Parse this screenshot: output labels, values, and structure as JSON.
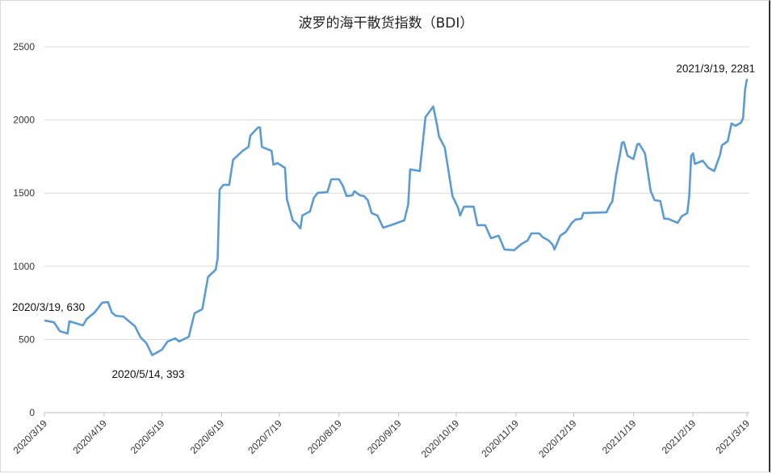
{
  "chart_data": {
    "type": "line",
    "title": "波罗的海干散货指数（BDI）",
    "xlabel": "",
    "ylabel": "",
    "ylim": [
      0,
      2500
    ],
    "yticks": [
      0,
      500,
      1000,
      1500,
      2000,
      2500
    ],
    "xlim": [
      "2020/3/19",
      "2021/3/19"
    ],
    "xticks": [
      "2020/3/19",
      "2020/4/19",
      "2020/5/19",
      "2020/6/19",
      "2020/7/19",
      "2020/8/19",
      "2020/9/19",
      "2020/10/19",
      "2020/11/19",
      "2020/12/19",
      "2021/1/19",
      "2021/2/19",
      "2021/3/19"
    ],
    "grid": "horizontal",
    "line_color": "#5b9bd5",
    "annotations": [
      {
        "label": "2020/3/19, 630",
        "date": "2020/3/19",
        "value": 630
      },
      {
        "label": "2020/5/14, 393",
        "date": "2020/5/14",
        "value": 393
      },
      {
        "label": "2021/3/19, 2281",
        "date": "2021/3/19",
        "value": 2281
      }
    ],
    "series": [
      {
        "points": [
          [
            "2020/3/19",
            630
          ],
          [
            "2020/3/24",
            617
          ],
          [
            "2020/3/27",
            557
          ],
          [
            "2020/3/31",
            541
          ],
          [
            "2020/4/1",
            624
          ],
          [
            "2020/4/8",
            596
          ],
          [
            "2020/4/10",
            640
          ],
          [
            "2020/4/14",
            684
          ],
          [
            "2020/4/18",
            751
          ],
          [
            "2020/4/21",
            756
          ],
          [
            "2020/4/23",
            685
          ],
          [
            "2020/4/25",
            662
          ],
          [
            "2020/4/29",
            657
          ],
          [
            "2020/5/5",
            591
          ],
          [
            "2020/5/8",
            513
          ],
          [
            "2020/5/11",
            475
          ],
          [
            "2020/5/14",
            393
          ],
          [
            "2020/5/16",
            408
          ],
          [
            "2020/5/19",
            430
          ],
          [
            "2020/5/22",
            486
          ],
          [
            "2020/5/26",
            508
          ],
          [
            "2020/5/28",
            486
          ],
          [
            "2020/6/2",
            519
          ],
          [
            "2020/6/5",
            679
          ],
          [
            "2020/6/9",
            707
          ],
          [
            "2020/6/12",
            927
          ],
          [
            "2020/6/16",
            977
          ],
          [
            "2020/6/17",
            1054
          ],
          [
            "2020/6/18",
            1524
          ],
          [
            "2020/6/20",
            1557
          ],
          [
            "2020/6/23",
            1557
          ],
          [
            "2020/6/25",
            1728
          ],
          [
            "2020/6/30",
            1789
          ],
          [
            "2020/7/3",
            1816
          ],
          [
            "2020/7/4",
            1893
          ],
          [
            "2020/7/8",
            1949
          ],
          [
            "2020/7/9",
            1949
          ],
          [
            "2020/7/10",
            1816
          ],
          [
            "2020/7/15",
            1789
          ],
          [
            "2020/7/16",
            1695
          ],
          [
            "2020/7/18",
            1706
          ],
          [
            "2020/7/22",
            1673
          ],
          [
            "2020/7/23",
            1458
          ],
          [
            "2020/7/26",
            1314
          ],
          [
            "2020/7/28",
            1292
          ],
          [
            "2020/7/30",
            1259
          ],
          [
            "2020/7/31",
            1347
          ],
          [
            "2020/8/4",
            1375
          ],
          [
            "2020/8/6",
            1468
          ],
          [
            "2020/8/8",
            1502
          ],
          [
            "2020/8/13",
            1507
          ],
          [
            "2020/8/15",
            1595
          ],
          [
            "2020/8/19",
            1595
          ],
          [
            "2020/8/21",
            1551
          ],
          [
            "2020/8/23",
            1480
          ],
          [
            "2020/8/26",
            1485
          ],
          [
            "2020/8/27",
            1513
          ],
          [
            "2020/8/30",
            1485
          ],
          [
            "2020/9/1",
            1480
          ],
          [
            "2020/9/3",
            1452
          ],
          [
            "2020/9/5",
            1364
          ],
          [
            "2020/9/8",
            1347
          ],
          [
            "2020/9/9",
            1320
          ],
          [
            "2020/9/11",
            1264
          ],
          [
            "2020/9/16",
            1286
          ],
          [
            "2020/9/22",
            1314
          ],
          [
            "2020/9/24",
            1424
          ],
          [
            "2020/9/25",
            1662
          ],
          [
            "2020/9/30",
            1651
          ],
          [
            "2020/10/3",
            2020
          ],
          [
            "2020/10/7",
            2092
          ],
          [
            "2020/10/9",
            1965
          ],
          [
            "2020/10/10",
            1888
          ],
          [
            "2020/10/13",
            1811
          ],
          [
            "2020/10/17",
            1480
          ],
          [
            "2020/10/20",
            1397
          ],
          [
            "2020/10/21",
            1347
          ],
          [
            "2020/10/23",
            1408
          ],
          [
            "2020/10/28",
            1408
          ],
          [
            "2020/10/30",
            1281
          ],
          [
            "2020/11/3",
            1281
          ],
          [
            "2020/11/6",
            1192
          ],
          [
            "2020/11/10",
            1209
          ],
          [
            "2020/11/13",
            1115
          ],
          [
            "2020/11/18",
            1110
          ],
          [
            "2020/11/22",
            1154
          ],
          [
            "2020/11/25",
            1176
          ],
          [
            "2020/11/27",
            1225
          ],
          [
            "2020/12/1",
            1225
          ],
          [
            "2020/12/3",
            1198
          ],
          [
            "2020/12/6",
            1176
          ],
          [
            "2020/12/8",
            1148
          ],
          [
            "2020/12/9",
            1115
          ],
          [
            "2020/12/12",
            1209
          ],
          [
            "2020/12/15",
            1236
          ],
          [
            "2020/12/18",
            1297
          ],
          [
            "2020/12/20",
            1320
          ],
          [
            "2020/12/23",
            1325
          ],
          [
            "2020/12/24",
            1364
          ],
          [
            "2021/1/5",
            1369
          ],
          [
            "2021/1/7",
            1424
          ],
          [
            "2021/1/8",
            1441
          ],
          [
            "2021/1/10",
            1623
          ],
          [
            "2021/1/12",
            1761
          ],
          [
            "2021/1/13",
            1844
          ],
          [
            "2021/1/14",
            1849
          ],
          [
            "2021/1/16",
            1755
          ],
          [
            "2021/1/19",
            1733
          ],
          [
            "2021/1/21",
            1833
          ],
          [
            "2021/1/22",
            1838
          ],
          [
            "2021/1/25",
            1772
          ],
          [
            "2021/1/28",
            1513
          ],
          [
            "2021/1/30",
            1452
          ],
          [
            "2021/2/2",
            1446
          ],
          [
            "2021/2/4",
            1325
          ],
          [
            "2021/2/6",
            1325
          ],
          [
            "2021/2/11",
            1297
          ],
          [
            "2021/2/13",
            1341
          ],
          [
            "2021/2/16",
            1364
          ],
          [
            "2021/2/17",
            1480
          ],
          [
            "2021/2/18",
            1755
          ],
          [
            "2021/2/19",
            1772
          ],
          [
            "2021/2/20",
            1700
          ],
          [
            "2021/2/24",
            1722
          ],
          [
            "2021/2/27",
            1673
          ],
          [
            "2021/3/2",
            1651
          ],
          [
            "2021/3/5",
            1761
          ],
          [
            "2021/3/6",
            1827
          ],
          [
            "2021/3/9",
            1855
          ],
          [
            "2021/3/11",
            1976
          ],
          [
            "2021/3/13",
            1960
          ],
          [
            "2021/3/16",
            1982
          ],
          [
            "2021/3/17",
            2015
          ],
          [
            "2021/3/18",
            2203
          ],
          [
            "2021/3/19",
            2281
          ]
        ]
      }
    ]
  }
}
